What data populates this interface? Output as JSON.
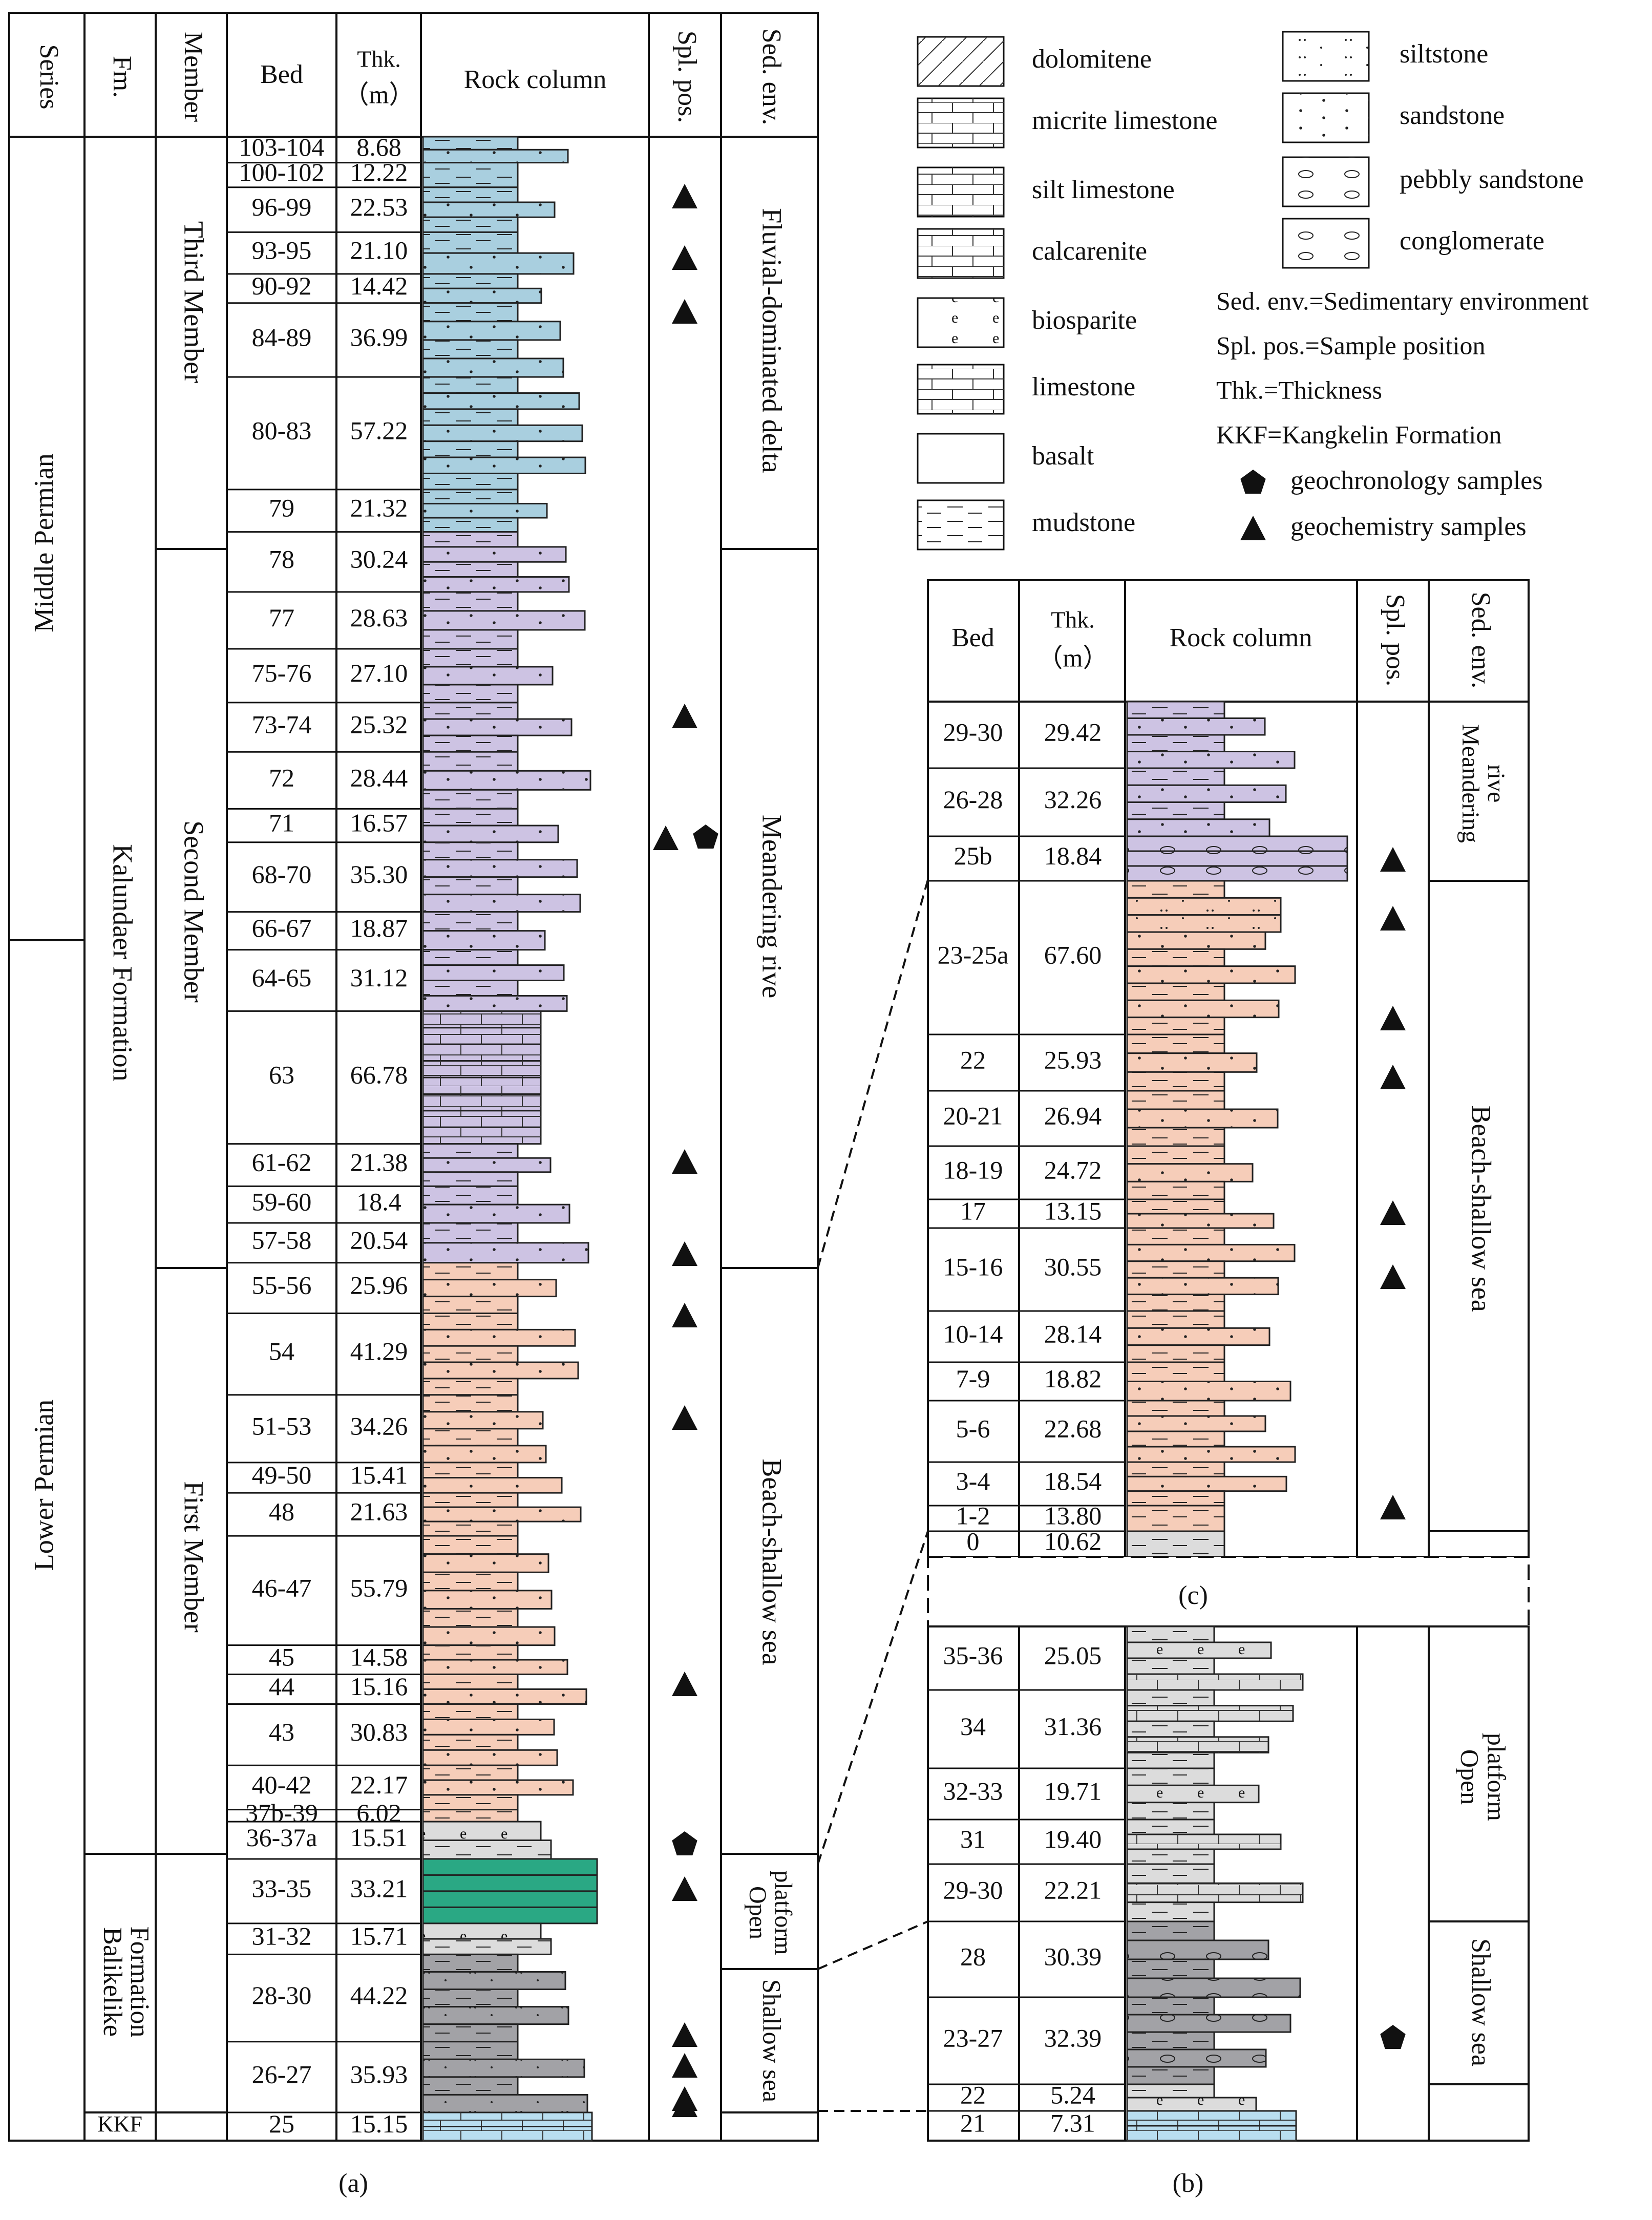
{
  "panel_a": {
    "headers": {
      "series": "Series",
      "fm": "Fm.",
      "member": "Member",
      "bed": "Bed",
      "thk_line1": "Thk.",
      "thk_line2": "（m）",
      "rock": "Rock column",
      "spl": "Spl. pos.",
      "sed": "Sed. env."
    },
    "series": [
      "Middle Permian",
      "Lower Permian"
    ],
    "formations": [
      "Kalundaer Formation",
      "Balikelike Formation",
      "KKF"
    ],
    "members": [
      "Third Member",
      "Second Member",
      "First Member"
    ],
    "sed_env": [
      "Fluvial-dominated delta",
      "Meandering rive",
      "Beach-shallow sea",
      "Open platform",
      "Shallow sea"
    ],
    "beds": [
      {
        "bed": "103-104",
        "thk": "8.68"
      },
      {
        "bed": "100-102",
        "thk": "12.22"
      },
      {
        "bed": "96-99",
        "thk": "22.53"
      },
      {
        "bed": "93-95",
        "thk": "21.10"
      },
      {
        "bed": "90-92",
        "thk": "14.42"
      },
      {
        "bed": "84-89",
        "thk": "36.99"
      },
      {
        "bed": "80-83",
        "thk": "57.22"
      },
      {
        "bed": "79",
        "thk": "21.32"
      },
      {
        "bed": "78",
        "thk": "30.24"
      },
      {
        "bed": "77",
        "thk": "28.63"
      },
      {
        "bed": "75-76",
        "thk": "27.10"
      },
      {
        "bed": "73-74",
        "thk": "25.32"
      },
      {
        "bed": "72",
        "thk": "28.44"
      },
      {
        "bed": "71",
        "thk": "16.57"
      },
      {
        "bed": "68-70",
        "thk": "35.30"
      },
      {
        "bed": "66-67",
        "thk": "18.87"
      },
      {
        "bed": "64-65",
        "thk": "31.12"
      },
      {
        "bed": "63",
        "thk": "66.78"
      },
      {
        "bed": "61-62",
        "thk": "21.38"
      },
      {
        "bed": "59-60",
        "thk": "18.4"
      },
      {
        "bed": "57-58",
        "thk": "20.54"
      },
      {
        "bed": "55-56",
        "thk": "25.96"
      },
      {
        "bed": "54",
        "thk": "41.29"
      },
      {
        "bed": "51-53",
        "thk": "34.26"
      },
      {
        "bed": "49-50",
        "thk": "15.41"
      },
      {
        "bed": "48",
        "thk": "21.63"
      },
      {
        "bed": "46-47",
        "thk": "55.79"
      },
      {
        "bed": "45",
        "thk": "14.58"
      },
      {
        "bed": "44",
        "thk": "15.16"
      },
      {
        "bed": "43",
        "thk": "30.83"
      },
      {
        "bed": "40-42",
        "thk": "22.17"
      },
      {
        "bed": "37b-39",
        "thk": "6.02"
      },
      {
        "bed": "36-37a",
        "thk": "15.51"
      },
      {
        "bed": "33-35",
        "thk": "33.21"
      },
      {
        "bed": "31-32",
        "thk": "15.71"
      },
      {
        "bed": "28-30",
        "thk": "44.22"
      },
      {
        "bed": "26-27",
        "thk": "35.93"
      },
      {
        "bed": "25",
        "thk": "15.15"
      }
    ],
    "caption": "(a)"
  },
  "legend": {
    "items": [
      "dolomitene",
      "micrite limestone",
      "silt limestone",
      "calcarenite",
      "biosparite",
      "limestone",
      "basalt",
      "mudstone",
      "siltstone",
      "sandstone",
      "pebbly sandstone",
      "conglomerate"
    ],
    "abbreviations": [
      "Sed. env.=Sedimentary environment",
      "Spl. pos.=Sample position",
      "Thk.=Thickness",
      "KKF=Kangkelin Formation"
    ],
    "symbols": [
      "geochronology samples",
      "geochemistry samples"
    ]
  },
  "panel_c": {
    "headers": {
      "bed": "Bed",
      "thk_line1": "Thk.",
      "thk_line2": "（m）",
      "rock": "Rock column",
      "spl": "Spl. pos.",
      "sed": "Sed. env."
    },
    "sed_env": [
      "Meandering rive",
      "Beach-shallow sea"
    ],
    "beds": [
      {
        "bed": "29-30",
        "thk": "29.42"
      },
      {
        "bed": "26-28",
        "thk": "32.26"
      },
      {
        "bed": "25b",
        "thk": "18.84"
      },
      {
        "bed": "23-25a",
        "thk": "67.60"
      },
      {
        "bed": "22",
        "thk": "25.93"
      },
      {
        "bed": "20-21",
        "thk": "26.94"
      },
      {
        "bed": "18-19",
        "thk": "24.72"
      },
      {
        "bed": "17",
        "thk": "13.15"
      },
      {
        "bed": "15-16",
        "thk": "30.55"
      },
      {
        "bed": "10-14",
        "thk": "28.14"
      },
      {
        "bed": "7-9",
        "thk": "18.82"
      },
      {
        "bed": "5-6",
        "thk": "22.68"
      },
      {
        "bed": "3-4",
        "thk": "18.54"
      },
      {
        "bed": "1-2",
        "thk": "13.80"
      },
      {
        "bed": "0",
        "thk": "10.62"
      }
    ],
    "caption": "(c)"
  },
  "panel_b": {
    "sed_env": [
      "Open platform",
      "Shallow sea"
    ],
    "beds": [
      {
        "bed": "35-36",
        "thk": "25.05"
      },
      {
        "bed": "34",
        "thk": "31.36"
      },
      {
        "bed": "32-33",
        "thk": "19.71"
      },
      {
        "bed": "31",
        "thk": "19.40"
      },
      {
        "bed": "29-30",
        "thk": "22.21"
      },
      {
        "bed": "28",
        "thk": "30.39"
      },
      {
        "bed": "23-27",
        "thk": "32.39"
      },
      {
        "bed": "22",
        "thk": "5.24"
      },
      {
        "bed": "21",
        "thk": "7.31"
      }
    ],
    "caption": "(b)"
  },
  "colors": {
    "purple": "#cdc3e3",
    "blue": "#a9cfdf",
    "peach": "#f6cdb9",
    "gray": "#dcdcdc",
    "darkgray": "#a2a2a6",
    "green": "#2aa884",
    "lightblue": "#b9def0"
  }
}
